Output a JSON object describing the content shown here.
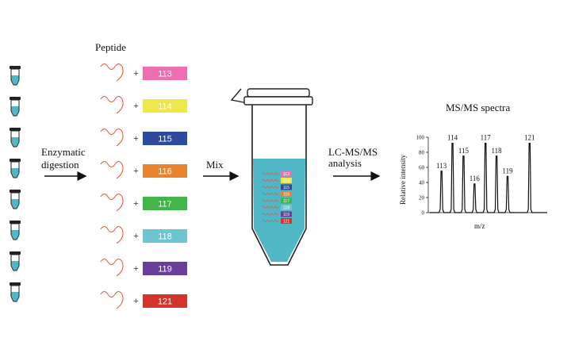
{
  "labels": {
    "peptide": "Peptide",
    "enzymatic": "Enzymatic",
    "digestion": "digestion",
    "mix": "Mix",
    "lcms1": "LC-MS/MS",
    "lcms2": "analysis",
    "spectra_title": "MS/MS spectra",
    "plus": "+"
  },
  "tags": [
    {
      "label": "113",
      "color": "#ee6fb0"
    },
    {
      "label": "114",
      "color": "#eee64a"
    },
    {
      "label": "115",
      "color": "#2d4a9c"
    },
    {
      "label": "116",
      "color": "#e8832f"
    },
    {
      "label": "117",
      "color": "#42b548"
    },
    {
      "label": "118",
      "color": "#6cc5d2"
    },
    {
      "label": "119",
      "color": "#6a3f9a"
    },
    {
      "label": "121",
      "color": "#d4342b"
    }
  ],
  "colors": {
    "tube_fill": "#4fb7c5",
    "peptide_wave": "#e5553a",
    "arrow": "#111111"
  },
  "chart_data": {
    "type": "line",
    "title": "MS/MS spectra",
    "xlabel": "m/z",
    "ylabel": "Relative intensity",
    "ylim": [
      0,
      100
    ],
    "yticks": [
      0,
      20,
      40,
      60,
      80,
      100
    ],
    "peaks": [
      {
        "label": "113",
        "x": 113,
        "value": 55
      },
      {
        "label": "114",
        "x": 114,
        "value": 92
      },
      {
        "label": "115",
        "x": 115,
        "value": 75
      },
      {
        "label": "116",
        "x": 116,
        "value": 38
      },
      {
        "label": "117",
        "x": 117,
        "value": 92
      },
      {
        "label": "118",
        "x": 118,
        "value": 75
      },
      {
        "label": "119",
        "x": 119,
        "value": 48
      },
      {
        "label": "121",
        "x": 121,
        "value": 92
      }
    ]
  }
}
